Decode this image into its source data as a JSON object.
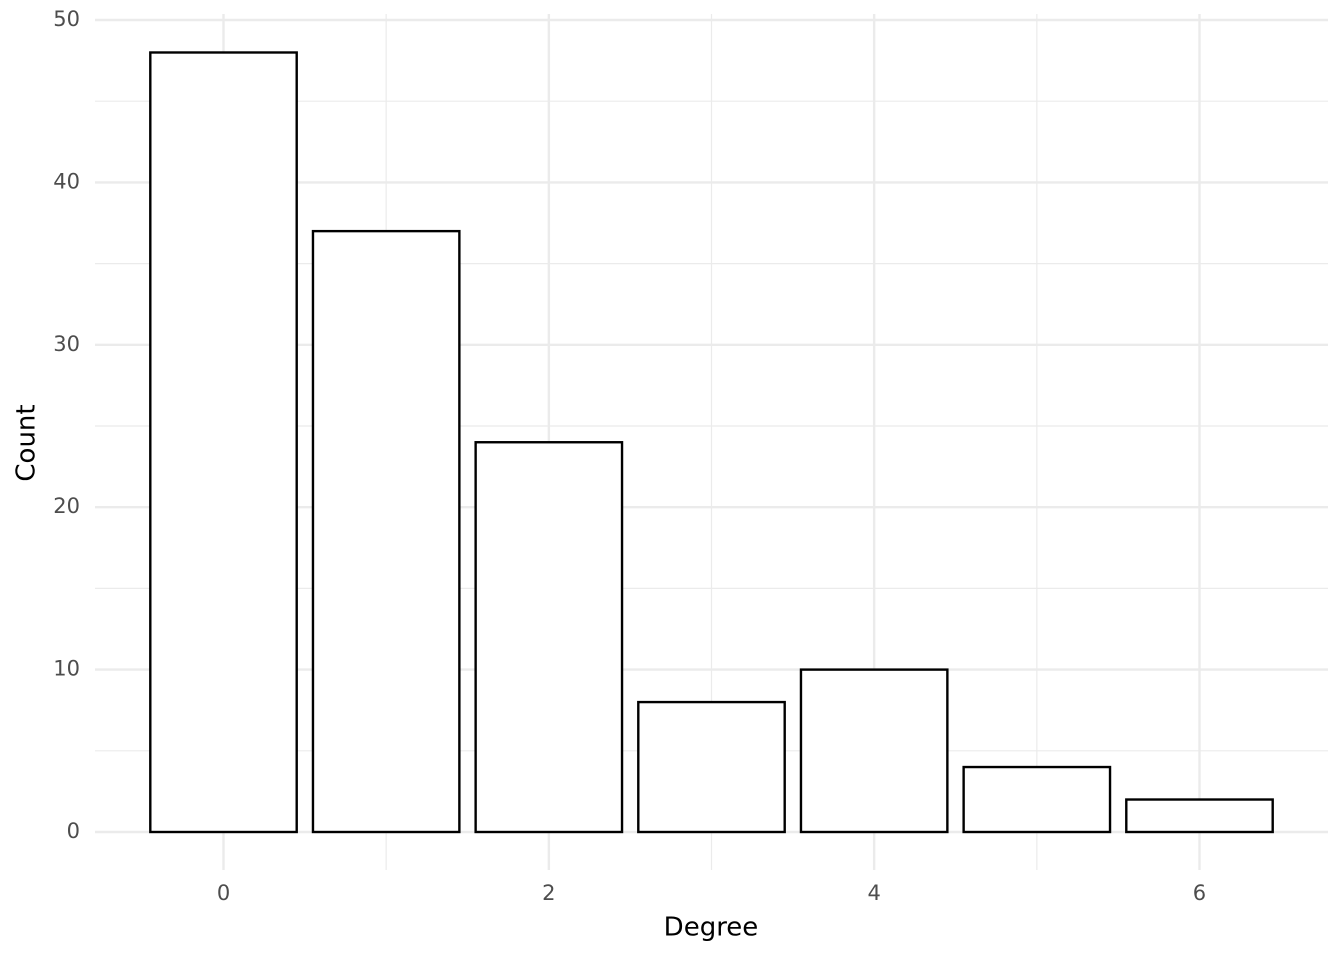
{
  "chart_data": {
    "type": "bar",
    "x_label": "Degree",
    "y_label": "Count",
    "x": [
      0,
      1,
      2,
      3,
      4,
      5,
      6
    ],
    "values": [
      48,
      37,
      24,
      8,
      10,
      4,
      2
    ],
    "color": "#ffffff",
    "edge_color": "#000000",
    "xlim": [
      -0.79,
      6.79
    ],
    "xticks": [
      0,
      2,
      4,
      6
    ],
    "ylim": [
      -2.34,
      50.37
    ],
    "yticks": [
      0,
      10,
      20,
      30,
      40,
      50
    ],
    "grid": true
  }
}
